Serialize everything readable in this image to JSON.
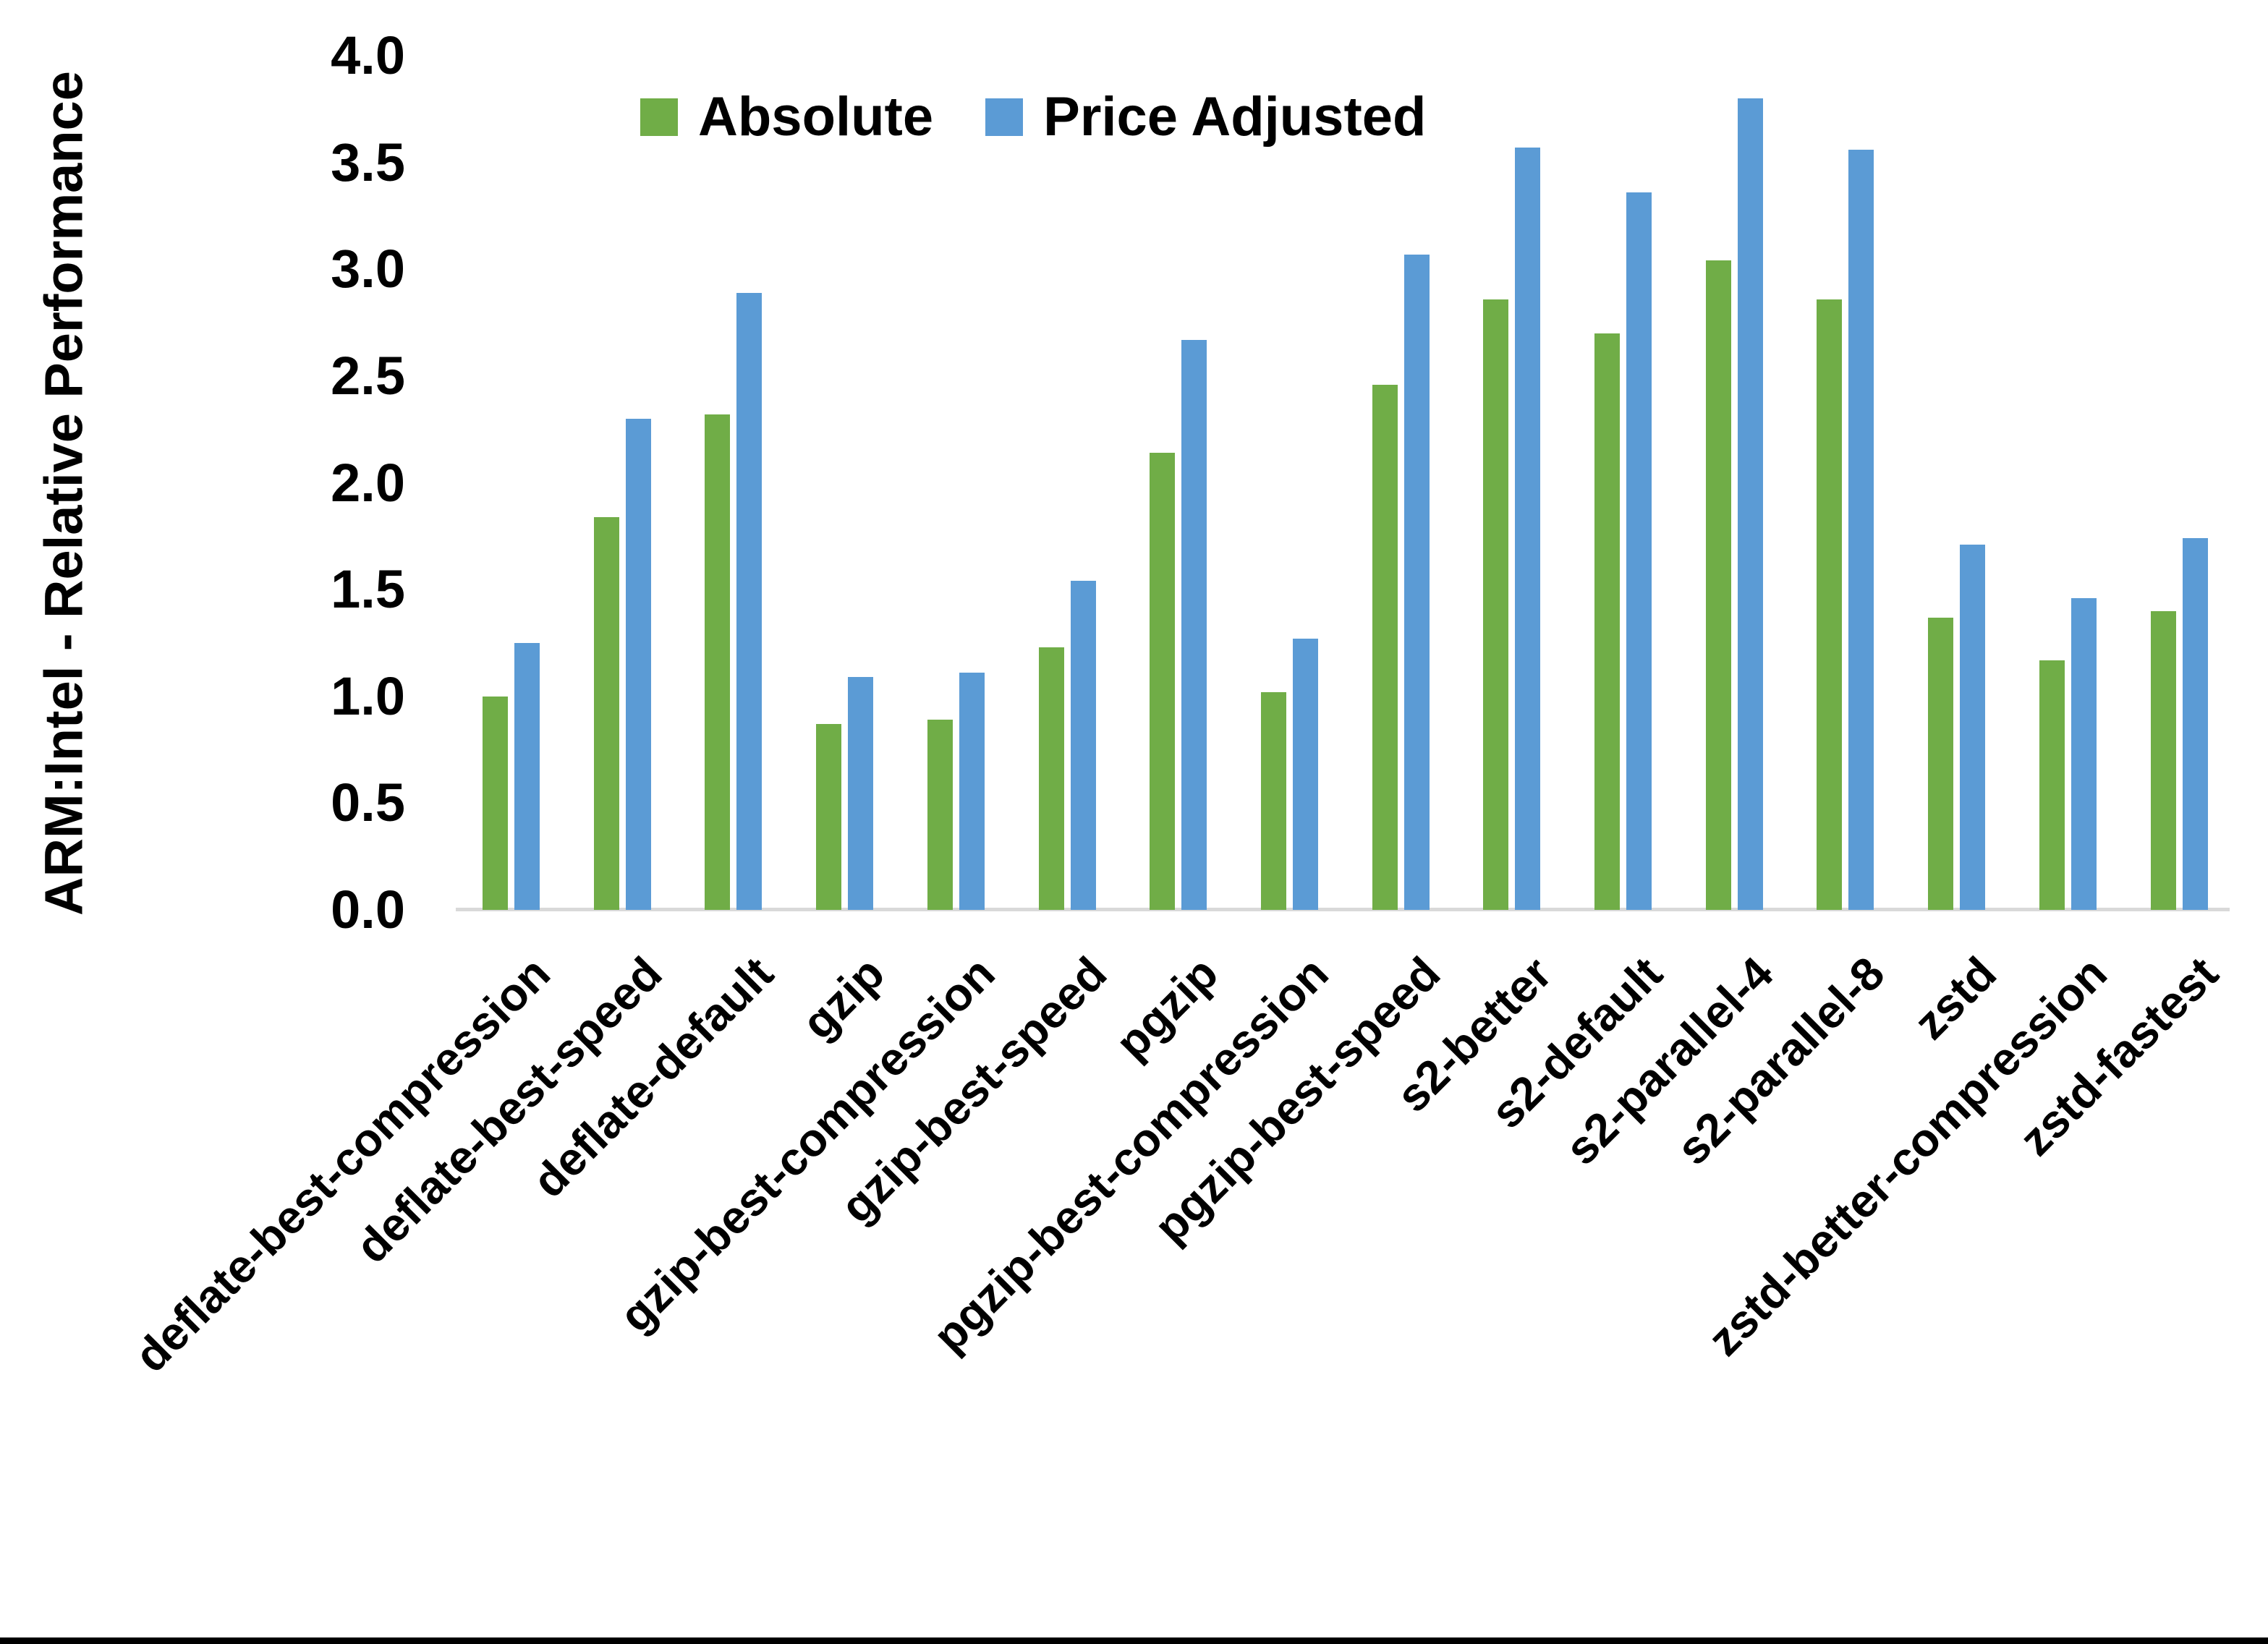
{
  "chart_data": {
    "type": "bar",
    "title": "",
    "xlabel": "",
    "ylabel": "ARM:Intel - Relative Performance",
    "ylim": [
      0.0,
      4.0
    ],
    "ytick_labels": [
      "0.0",
      "0.5",
      "1.0",
      "1.5",
      "2.0",
      "2.5",
      "3.0",
      "3.5",
      "4.0"
    ],
    "grid": false,
    "legend_position": "top-center",
    "axis_line_color": "#d9d9d9",
    "categories": [
      "deflate-best-compression",
      "deflate-best-speed",
      "deflate-default",
      "gzip",
      "gzip-best-compression",
      "gzip-best-speed",
      "pgzip",
      "pgzip-best-compression",
      "pgzip-best-speed",
      "s2-better",
      "s2-default",
      "s2-parallel-4",
      "s2-parallel-8",
      "zstd",
      "zstd-better-compression",
      "zstd-fastest"
    ],
    "series": [
      {
        "name": "Absolute",
        "color": "#70ad47",
        "values": [
          1.0,
          1.84,
          2.32,
          0.87,
          0.89,
          1.23,
          2.14,
          1.02,
          2.46,
          2.86,
          2.7,
          3.04,
          2.86,
          1.37,
          1.17,
          1.4
        ]
      },
      {
        "name": "Price Adjusted",
        "color": "#5b9bd5",
        "values": [
          1.25,
          2.3,
          2.89,
          1.09,
          1.11,
          1.54,
          2.67,
          1.27,
          3.07,
          3.57,
          3.36,
          3.8,
          3.56,
          1.71,
          1.46,
          1.74
        ]
      }
    ]
  }
}
